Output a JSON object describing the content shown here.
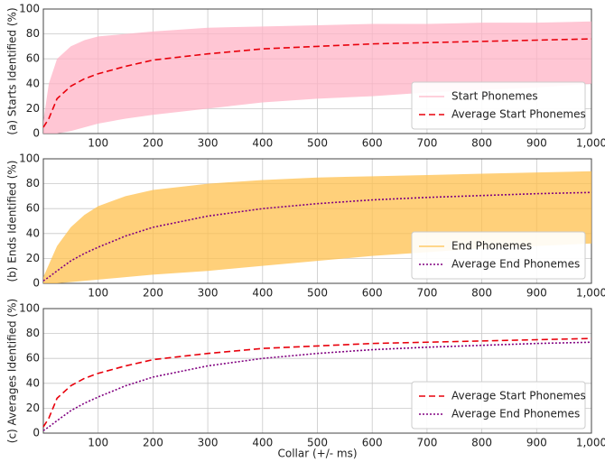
{
  "chart_data": [
    {
      "type": "line",
      "ylabel": "(a) Starts Identified (%)",
      "x": [
        0,
        10,
        25,
        50,
        75,
        100,
        150,
        200,
        300,
        400,
        500,
        600,
        700,
        800,
        900,
        1000
      ],
      "series": [
        {
          "name": "Start Phonemes",
          "color": "#ffb3c6",
          "low": [
            0,
            0,
            0,
            2,
            5,
            8,
            12,
            15,
            20,
            25,
            28,
            30,
            33,
            35,
            37,
            40
          ],
          "high": [
            10,
            40,
            60,
            70,
            75,
            78,
            80,
            82,
            85,
            86,
            87,
            88,
            88,
            89,
            89,
            90
          ]
        },
        {
          "name": "Average Start Phonemes",
          "color": "#e8000b",
          "dash": "dashed",
          "values": [
            5,
            12,
            28,
            38,
            44,
            48,
            54,
            59,
            64,
            68,
            70,
            72,
            73,
            74,
            75,
            76
          ]
        }
      ],
      "xlim": [
        0,
        1000
      ],
      "xticks": [
        100,
        200,
        300,
        400,
        500,
        600,
        700,
        800,
        900,
        {
          "value": 1000,
          "label": "1,000"
        }
      ],
      "ylim": [
        0,
        100
      ],
      "yticks": [
        0,
        20,
        40,
        60,
        80,
        100
      ],
      "grid": true,
      "legend": "lower right"
    },
    {
      "type": "line",
      "ylabel": "(b) Ends Identified (%)",
      "x": [
        0,
        10,
        25,
        50,
        75,
        100,
        150,
        200,
        300,
        400,
        500,
        600,
        700,
        800,
        900,
        1000
      ],
      "series": [
        {
          "name": "End Phonemes",
          "color": "#ffc04d",
          "low": [
            0,
            0,
            0,
            1,
            2,
            3,
            5,
            7,
            10,
            14,
            18,
            22,
            25,
            28,
            30,
            32
          ],
          "high": [
            5,
            15,
            30,
            45,
            55,
            62,
            70,
            75,
            80,
            83,
            85,
            86,
            87,
            88,
            89,
            90
          ]
        },
        {
          "name": "Average End Phonemes",
          "color": "#800080",
          "dash": "dotted",
          "values": [
            2,
            5,
            10,
            18,
            24,
            29,
            38,
            45,
            54,
            60,
            64,
            67,
            69,
            70.5,
            72,
            73
          ]
        }
      ],
      "xlim": [
        0,
        1000
      ],
      "xticks": [
        100,
        200,
        300,
        400,
        500,
        600,
        700,
        800,
        900,
        {
          "value": 1000,
          "label": "1,000"
        }
      ],
      "ylim": [
        0,
        100
      ],
      "yticks": [
        0,
        20,
        40,
        60,
        80,
        100
      ],
      "grid": true,
      "legend": "lower right"
    },
    {
      "type": "line",
      "ylabel": "(c) Averages Identified (%)",
      "xlabel": "Collar (+/- ms)",
      "x": [
        0,
        10,
        25,
        50,
        75,
        100,
        150,
        200,
        300,
        400,
        500,
        600,
        700,
        800,
        900,
        1000
      ],
      "series": [
        {
          "name": "Average Start Phonemes",
          "color": "#e8000b",
          "dash": "dashed",
          "values": [
            5,
            12,
            28,
            38,
            44,
            48,
            54,
            59,
            64,
            68,
            70,
            72,
            73,
            74,
            75,
            76
          ]
        },
        {
          "name": "Average End Phonemes",
          "color": "#800080",
          "dash": "dotted",
          "values": [
            2,
            5,
            10,
            18,
            24,
            29,
            38,
            45,
            54,
            60,
            64,
            67,
            69,
            70.5,
            72,
            73
          ]
        }
      ],
      "xlim": [
        0,
        1000
      ],
      "xticks": [
        100,
        200,
        300,
        400,
        500,
        600,
        700,
        800,
        900,
        {
          "value": 1000,
          "label": "1,000"
        }
      ],
      "ylim": [
        0,
        100
      ],
      "yticks": [
        0,
        20,
        40,
        60,
        80,
        100
      ],
      "grid": true,
      "legend": "lower right"
    }
  ]
}
